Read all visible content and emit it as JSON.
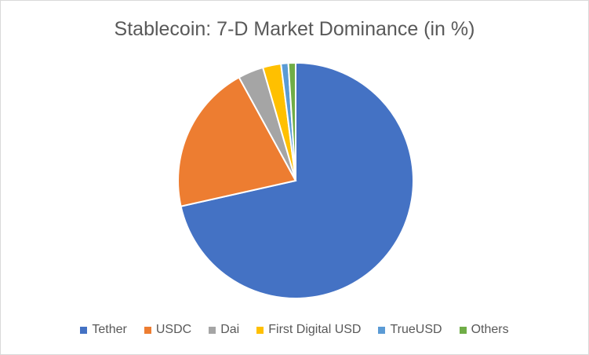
{
  "chart_data": {
    "type": "pie",
    "title": "Stablecoin: 7-D Market Dominance (in %)",
    "series": [
      {
        "name": "Tether",
        "value": 71.5,
        "color": "#4472C4"
      },
      {
        "name": "USDC",
        "value": 20.5,
        "color": "#ED7D31"
      },
      {
        "name": "Dai",
        "value": 3.5,
        "color": "#A5A5A5"
      },
      {
        "name": "First Digital USD",
        "value": 2.5,
        "color": "#FFC000"
      },
      {
        "name": "TrueUSD",
        "value": 1.0,
        "color": "#5B9BD5"
      },
      {
        "name": "Others",
        "value": 1.0,
        "color": "#70AD47"
      }
    ],
    "legend_position": "bottom"
  }
}
